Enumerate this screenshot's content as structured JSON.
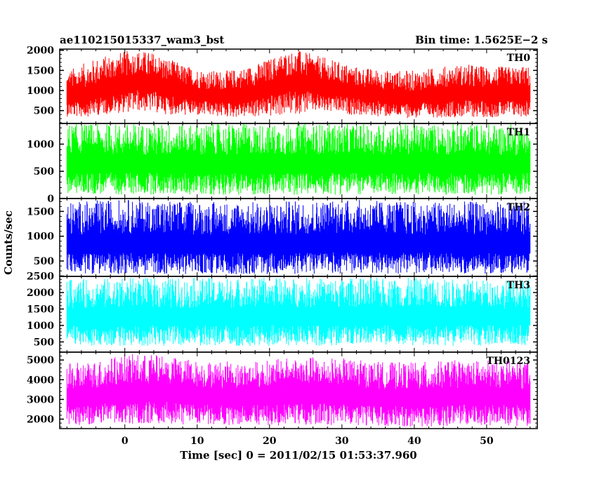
{
  "header": {
    "left_title": "ae110215015337_wam3_bst",
    "right_title": "Bin time: 1.5625E−2 s"
  },
  "chart_data": {
    "type": "line",
    "title": "ae110215015337_wam3_bst",
    "subtitle": "Bin time: 1.5625E−2 s",
    "xlabel": "Time [sec] 0 = 2011/02/15 01:53:37.960",
    "ylabel": "Counts/sec",
    "xlim": [
      -9,
      57
    ],
    "x_ticks": [
      0,
      10,
      20,
      30,
      40,
      50
    ],
    "x_data_range": [
      -8,
      56
    ],
    "bin_time": 0.015625,
    "grid": false,
    "legend": "none",
    "panels": [
      {
        "name": "TH0",
        "color": "#ff0000",
        "ylim": [
          180,
          2030
        ],
        "y_ticks": [
          500,
          1000,
          1500,
          2000
        ],
        "envelope": {
          "x": [
            -8,
            -6,
            -4,
            -2,
            0,
            2,
            4,
            6,
            8,
            10,
            12,
            14,
            16,
            18,
            20,
            22,
            24,
            26,
            28,
            30,
            32,
            34,
            36,
            38,
            40,
            42,
            44,
            46,
            48,
            50,
            52,
            54,
            56
          ],
          "min": [
            350,
            330,
            380,
            420,
            450,
            480,
            450,
            400,
            380,
            360,
            350,
            330,
            330,
            330,
            340,
            380,
            420,
            450,
            440,
            420,
            380,
            360,
            340,
            330,
            300,
            330,
            330,
            330,
            330,
            330,
            330,
            340,
            340
          ],
          "max": [
            1500,
            1650,
            1800,
            1900,
            1980,
            2000,
            1950,
            1800,
            1650,
            1550,
            1500,
            1500,
            1550,
            1650,
            1800,
            1950,
            2000,
            1900,
            1800,
            1700,
            1600,
            1550,
            1500,
            1500,
            1500,
            1550,
            1600,
            1650,
            1650,
            1600,
            1600,
            1600,
            1600
          ],
          "mean": [
            800,
            850,
            950,
            1050,
            1150,
            1200,
            1150,
            1050,
            950,
            900,
            850,
            850,
            900,
            950,
            1050,
            1150,
            1200,
            1150,
            1050,
            1000,
            950,
            900,
            850,
            850,
            800,
            850,
            850,
            900,
            900,
            900,
            900,
            900,
            900
          ]
        }
      },
      {
        "name": "TH1",
        "color": "#00ff00",
        "ylim": [
          0,
          1380
        ],
        "y_ticks": [
          0,
          500,
          1000
        ],
        "envelope": {
          "x": [
            -8,
            0,
            10,
            20,
            30,
            40,
            50,
            56
          ],
          "min": [
            80,
            70,
            70,
            60,
            70,
            70,
            70,
            80
          ],
          "max": [
            1380,
            1380,
            1380,
            1380,
            1380,
            1380,
            1380,
            1380
          ],
          "mean": [
            600,
            620,
            600,
            610,
            610,
            600,
            600,
            600
          ]
        }
      },
      {
        "name": "TH2",
        "color": "#0000ff",
        "ylim": [
          190,
          1760
        ],
        "y_ticks": [
          500,
          1000,
          1500
        ],
        "envelope": {
          "x": [
            -8,
            0,
            10,
            20,
            30,
            40,
            50,
            56
          ],
          "min": [
            250,
            230,
            230,
            230,
            240,
            240,
            240,
            250
          ],
          "max": [
            1700,
            1750,
            1700,
            1700,
            1750,
            1700,
            1700,
            1700
          ],
          "mean": [
            800,
            820,
            810,
            800,
            830,
            820,
            810,
            800
          ]
        }
      },
      {
        "name": "TH3",
        "color": "#00ffff",
        "ylim": [
          190,
          2490
        ],
        "y_ticks": [
          500,
          1000,
          1500,
          2000,
          2500
        ],
        "envelope": {
          "x": [
            -8,
            0,
            10,
            20,
            30,
            40,
            50,
            56
          ],
          "min": [
            400,
            380,
            380,
            370,
            380,
            380,
            380,
            400
          ],
          "max": [
            2400,
            2450,
            2450,
            2450,
            2450,
            2450,
            2400,
            2400
          ],
          "mean": [
            1200,
            1230,
            1220,
            1230,
            1240,
            1230,
            1220,
            1210
          ]
        }
      },
      {
        "name": "TH0123",
        "color": "#ff00ff",
        "ylim": [
          1520,
          5400
        ],
        "y_ticks": [
          2000,
          3000,
          4000,
          5000
        ],
        "envelope": {
          "x": [
            -8,
            -4,
            0,
            4,
            10,
            16,
            20,
            24,
            30,
            36,
            40,
            46,
            50,
            56
          ],
          "min": [
            1650,
            1700,
            1750,
            1750,
            1700,
            1650,
            1650,
            1700,
            1700,
            1650,
            1600,
            1650,
            1650,
            1650
          ],
          "max": [
            4800,
            5000,
            5300,
            5300,
            5000,
            4900,
            5000,
            5200,
            5100,
            4900,
            4900,
            5000,
            5000,
            4900
          ],
          "mean": [
            3000,
            3100,
            3250,
            3300,
            3150,
            3050,
            3100,
            3200,
            3150,
            3050,
            3000,
            3100,
            3100,
            3050
          ]
        }
      }
    ]
  }
}
